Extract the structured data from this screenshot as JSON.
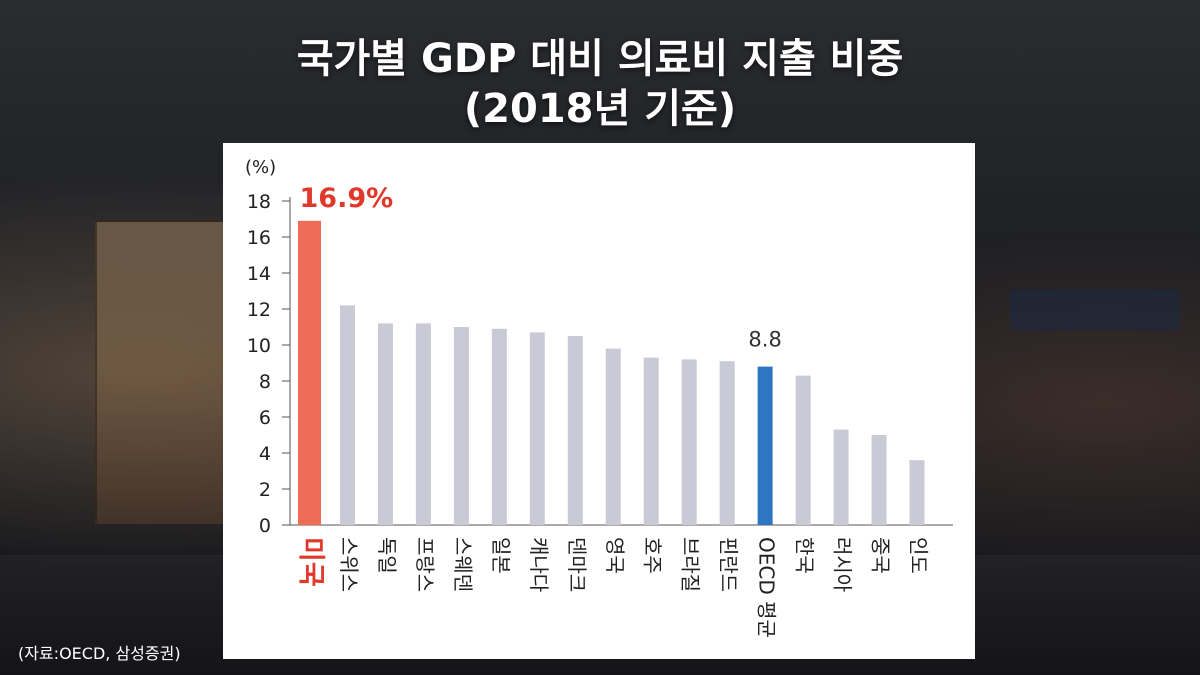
{
  "title_line1": "국가별 GDP 대비 의료비 지출 비중",
  "title_line2": "(2018년 기준)",
  "source": "(자료:OECD, 삼성증권)",
  "chart_data": {
    "type": "bar",
    "unit_label": "(%)",
    "categories": [
      "미국",
      "스위스",
      "독일",
      "프랑스",
      "스웨덴",
      "일본",
      "캐나다",
      "덴마크",
      "영국",
      "호주",
      "브라질",
      "핀란드",
      "OECD 평균",
      "한국",
      "러시아",
      "중국",
      "인도"
    ],
    "values": [
      16.9,
      12.2,
      11.2,
      11.2,
      11.0,
      10.9,
      10.7,
      10.5,
      9.8,
      9.3,
      9.2,
      9.1,
      8.8,
      8.3,
      5.3,
      5.0,
      3.6
    ],
    "ylim": [
      0,
      18
    ],
    "yticks": [
      0,
      2,
      4,
      6,
      8,
      10,
      12,
      14,
      16,
      18
    ],
    "data_labels": [
      {
        "category": "미국",
        "text": "16.9%"
      },
      {
        "category": "OECD 평균",
        "text": "8.8"
      }
    ],
    "grid": false,
    "colors": {
      "highlight": "#ef6c57",
      "oecd": "#2e75c4",
      "default": "#c9cad6",
      "highlight_text": "#e0392b"
    }
  }
}
